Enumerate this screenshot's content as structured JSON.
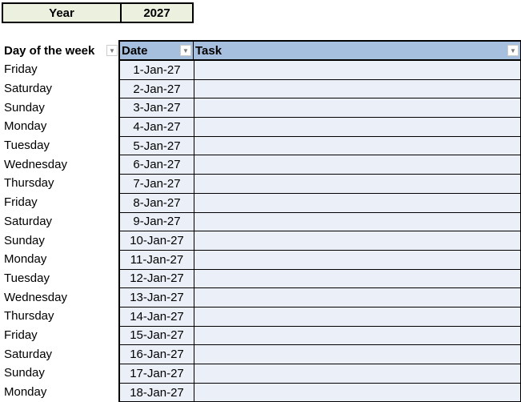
{
  "year_box": {
    "label": "Year",
    "value": "2027"
  },
  "table": {
    "day_header": "Day of the week",
    "columns": [
      "Date",
      "Task"
    ],
    "rows": [
      {
        "day": "Friday",
        "date": "1-Jan-27",
        "task": ""
      },
      {
        "day": "Saturday",
        "date": "2-Jan-27",
        "task": ""
      },
      {
        "day": "Sunday",
        "date": "3-Jan-27",
        "task": ""
      },
      {
        "day": "Monday",
        "date": "4-Jan-27",
        "task": ""
      },
      {
        "day": "Tuesday",
        "date": "5-Jan-27",
        "task": ""
      },
      {
        "day": "Wednesday",
        "date": "6-Jan-27",
        "task": ""
      },
      {
        "day": "Thursday",
        "date": "7-Jan-27",
        "task": ""
      },
      {
        "day": "Friday",
        "date": "8-Jan-27",
        "task": ""
      },
      {
        "day": "Saturday",
        "date": "9-Jan-27",
        "task": ""
      },
      {
        "day": "Sunday",
        "date": "10-Jan-27",
        "task": ""
      },
      {
        "day": "Monday",
        "date": "11-Jan-27",
        "task": ""
      },
      {
        "day": "Tuesday",
        "date": "12-Jan-27",
        "task": ""
      },
      {
        "day": "Wednesday",
        "date": "13-Jan-27",
        "task": ""
      },
      {
        "day": "Thursday",
        "date": "14-Jan-27",
        "task": ""
      },
      {
        "day": "Friday",
        "date": "15-Jan-27",
        "task": ""
      },
      {
        "day": "Saturday",
        "date": "16-Jan-27",
        "task": ""
      },
      {
        "day": "Sunday",
        "date": "17-Jan-27",
        "task": ""
      },
      {
        "day": "Monday",
        "date": "18-Jan-27",
        "task": ""
      }
    ]
  },
  "colors": {
    "header_bg": "#a7bfde",
    "cell_bg": "#ebf0f8",
    "year_bg": "#ebf1de"
  }
}
